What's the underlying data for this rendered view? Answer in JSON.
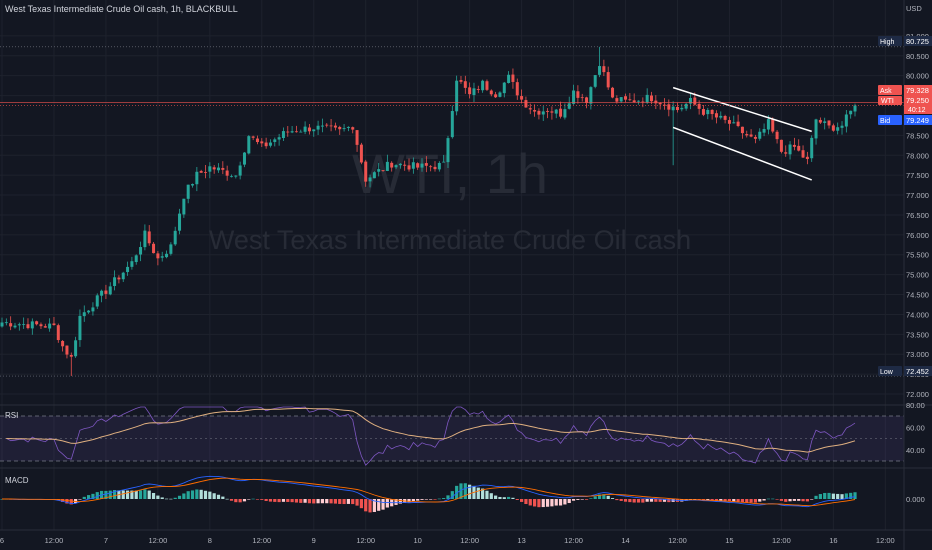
{
  "header": {
    "title": "West Texas Intermediate Crude Oil cash, 1h, BLACKBULL"
  },
  "watermark": {
    "symbol": "WTI, 1h",
    "name": "West Texas Intermediate Crude Oil cash"
  },
  "colors": {
    "up": "#26a69a",
    "down": "#ef5350",
    "bg": "#131722",
    "grid": "#1e222d",
    "rsi": "#7e57c2",
    "rsi_ma": "#e0b080",
    "macd": "#2962ff",
    "signal": "#ff6d00"
  },
  "price_axis": {
    "currency": "USD",
    "ticks": [
      "81.000",
      "80.500",
      "80.000",
      "79.500",
      "78.500",
      "78.000",
      "77.500",
      "77.000",
      "76.500",
      "76.000",
      "75.500",
      "75.000",
      "74.500",
      "74.000",
      "73.500",
      "73.000",
      "72.500",
      "72.000"
    ],
    "tick_values": [
      81.0,
      80.5,
      80.0,
      79.5,
      78.5,
      78.0,
      77.5,
      77.0,
      76.5,
      76.0,
      75.5,
      75.0,
      74.5,
      74.0,
      73.5,
      73.0,
      72.5,
      72.0
    ],
    "range": [
      71.85,
      81.6
    ]
  },
  "markers": {
    "high": {
      "label": "High",
      "value": "80.725",
      "num": 80.725
    },
    "ask": {
      "label": "Ask",
      "value": "79.328",
      "num": 79.328
    },
    "last": {
      "label": "WTI",
      "value": "79.250",
      "countdown": "40:12",
      "num": 79.25
    },
    "bid": {
      "label": "Bid",
      "value": "79.249",
      "num": 79.249
    },
    "low": {
      "label": "Low",
      "value": "72.452",
      "num": 72.452
    }
  },
  "rsi": {
    "label": "RSI",
    "ticks": [
      "80.00",
      "60.00",
      "40.00"
    ],
    "tick_values": [
      80,
      60,
      40
    ],
    "bands": [
      70,
      50,
      30
    ]
  },
  "macd": {
    "label": "MACD",
    "tick": "0.000"
  },
  "time_axis": {
    "labels": [
      "6",
      "12:00",
      "7",
      "12:00",
      "8",
      "12:00",
      "9",
      "12:00",
      "10",
      "12:00",
      "13",
      "12:00",
      "14",
      "12:00",
      "15",
      "12:00",
      "16",
      "12:00"
    ],
    "positions": [
      0,
      12,
      24,
      36,
      48,
      60,
      72,
      84,
      96,
      108,
      120,
      132,
      144,
      156,
      168,
      180,
      192,
      204
    ]
  },
  "chart_data": {
    "type": "candlestick",
    "title": "West Texas Intermediate Crude Oil cash, 1h, BLACKBULL",
    "ylim": [
      71.85,
      81.6
    ],
    "candles_total": 198,
    "anchors": [
      [
        0,
        73.8
      ],
      [
        6,
        73.75
      ],
      [
        12,
        73.7
      ],
      [
        14,
        73.2
      ],
      [
        16,
        72.9
      ],
      [
        18,
        73.95
      ],
      [
        24,
        74.6
      ],
      [
        30,
        75.3
      ],
      [
        33,
        76.0
      ],
      [
        36,
        75.4
      ],
      [
        39,
        75.7
      ],
      [
        42,
        77.0
      ],
      [
        45,
        77.5
      ],
      [
        48,
        77.7
      ],
      [
        54,
        77.5
      ],
      [
        57,
        78.5
      ],
      [
        60,
        78.2
      ],
      [
        63,
        78.4
      ],
      [
        66,
        78.6
      ],
      [
        72,
        78.7
      ],
      [
        78,
        78.6
      ],
      [
        81,
        78.75
      ],
      [
        84,
        77.4
      ],
      [
        90,
        77.8
      ],
      [
        96,
        77.7
      ],
      [
        102,
        77.75
      ],
      [
        105,
        79.95
      ],
      [
        108,
        79.5
      ],
      [
        111,
        79.8
      ],
      [
        114,
        79.55
      ],
      [
        117,
        79.95
      ],
      [
        120,
        79.4
      ],
      [
        123,
        79.1
      ],
      [
        126,
        79.15
      ],
      [
        129,
        79.05
      ],
      [
        132,
        79.6
      ],
      [
        135,
        79.4
      ],
      [
        138,
        80.35
      ],
      [
        141,
        79.4
      ],
      [
        144,
        79.35
      ],
      [
        150,
        79.45
      ],
      [
        156,
        79.15
      ],
      [
        159,
        79.35
      ],
      [
        162,
        79.1
      ],
      [
        168,
        78.8
      ],
      [
        174,
        78.35
      ],
      [
        177,
        78.8
      ],
      [
        180,
        78.1
      ],
      [
        183,
        78.2
      ],
      [
        186,
        77.85
      ],
      [
        188,
        78.9
      ],
      [
        191,
        78.7
      ],
      [
        194,
        78.75
      ],
      [
        197,
        79.25
      ]
    ],
    "channel_upper": [
      [
        155,
        79.7
      ],
      [
        187,
        78.6
      ]
    ],
    "channel_lower": [
      [
        155,
        78.7
      ],
      [
        187,
        77.38
      ]
    ]
  }
}
